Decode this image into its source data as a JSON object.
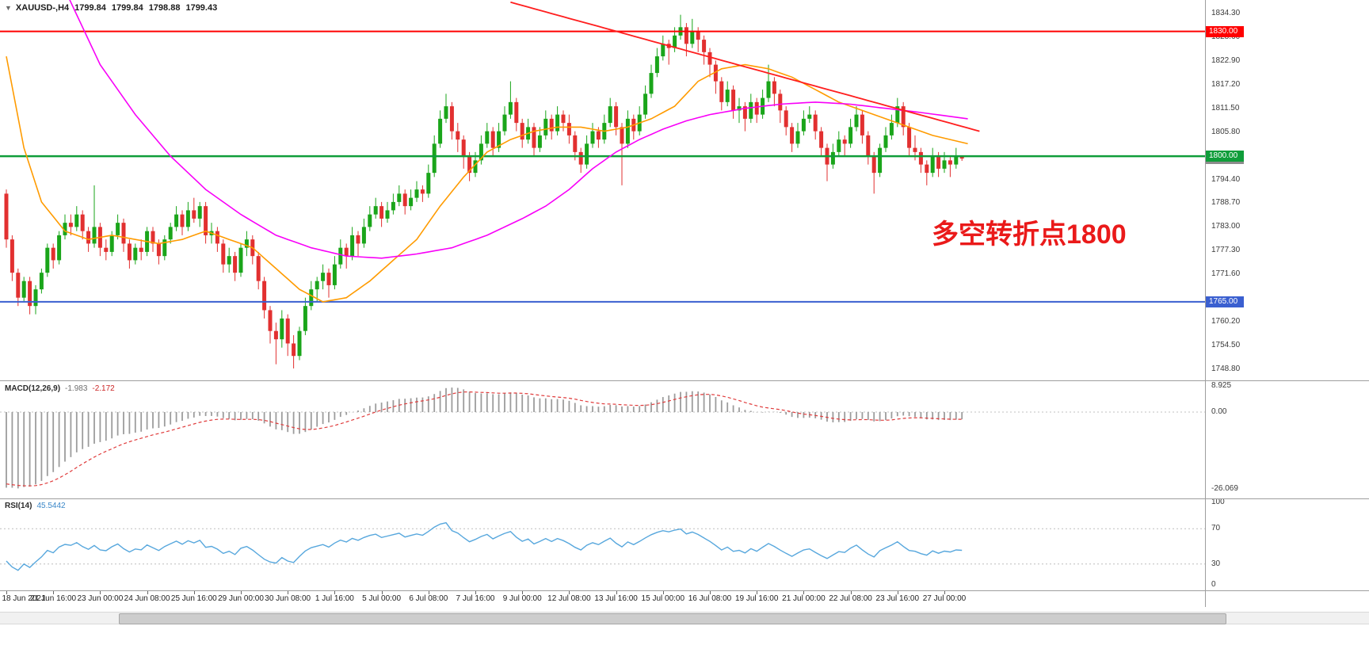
{
  "header": {
    "dropdown_icon": "▼",
    "symbol": "XAUUSD-,H4",
    "ohlc": {
      "open": "1799.84",
      "high": "1799.84",
      "low": "1798.88",
      "close": "1799.43"
    }
  },
  "annotation": {
    "text": "多空转折点1800",
    "color": "#ea1a1a"
  },
  "chart_data": {
    "type": "candlestick",
    "title": "XAUUSD- H4",
    "colors": {
      "up": "#1aa51a",
      "down": "#e23030",
      "background": "#ffffff"
    },
    "price_axis": {
      "ticks": [
        1834.3,
        1828.6,
        1822.9,
        1817.2,
        1811.5,
        1805.8,
        1794.4,
        1788.7,
        1783.0,
        1777.3,
        1771.6,
        1760.2,
        1754.5,
        1748.8
      ]
    },
    "time_axis": {
      "bars_per_label": 8,
      "labels": [
        "18 Jun 2021",
        "21 Jun 16:00",
        "23 Jun 00:00",
        "24 Jun 08:00",
        "25 Jun 16:00",
        "29 Jun 00:00",
        "30 Jun 08:00",
        "1 Jul 16:00",
        "5 Jul 00:00",
        "6 Jul 08:00",
        "7 Jul 16:00",
        "9 Jul 00:00",
        "12 Jul 08:00",
        "13 Jul 16:00",
        "15 Jul 00:00",
        "16 Jul 08:00",
        "19 Jul 16:00",
        "21 Jul 00:00",
        "22 Jul 08:00",
        "23 Jul 16:00",
        "27 Jul 00:00"
      ]
    },
    "hlines": [
      {
        "price": 1830.0,
        "label": "1830.00",
        "color": "#ff0000",
        "width": 2
      },
      {
        "price": 1800.0,
        "label": "1800.00",
        "color": "#0f9d3a",
        "width": 2.5
      },
      {
        "price": 1799.43,
        "label": "1799.43",
        "color": "#8c8c8c",
        "width": 0
      },
      {
        "price": 1765.0,
        "label": "1765.00",
        "color": "#3a5fd0",
        "width": 2
      }
    ],
    "overlays": [
      {
        "name": "ma-fast-orange",
        "color": "#ff9b00",
        "width": 1.6,
        "points": [
          [
            0,
            1824
          ],
          [
            3,
            1802
          ],
          [
            6,
            1789
          ],
          [
            10,
            1782
          ],
          [
            14,
            1780
          ],
          [
            18,
            1781
          ],
          [
            22,
            1780
          ],
          [
            26,
            1779
          ],
          [
            30,
            1780
          ],
          [
            34,
            1782
          ],
          [
            38,
            1780
          ],
          [
            42,
            1778
          ],
          [
            46,
            1773
          ],
          [
            50,
            1768
          ],
          [
            54,
            1765
          ],
          [
            58,
            1766
          ],
          [
            62,
            1770
          ],
          [
            66,
            1775
          ],
          [
            70,
            1780
          ],
          [
            74,
            1788
          ],
          [
            78,
            1795
          ],
          [
            82,
            1801
          ],
          [
            86,
            1804
          ],
          [
            90,
            1806
          ],
          [
            94,
            1807
          ],
          [
            98,
            1807
          ],
          [
            102,
            1806
          ],
          [
            106,
            1807
          ],
          [
            110,
            1809
          ],
          [
            114,
            1812
          ],
          [
            118,
            1818
          ],
          [
            122,
            1821
          ],
          [
            126,
            1822
          ],
          [
            130,
            1821
          ],
          [
            134,
            1819
          ],
          [
            138,
            1816
          ],
          [
            142,
            1813
          ],
          [
            146,
            1811
          ],
          [
            150,
            1809
          ],
          [
            154,
            1807
          ],
          [
            158,
            1805
          ],
          [
            164,
            1803
          ]
        ]
      },
      {
        "name": "ma-slow-magenta",
        "color": "#f800f8",
        "width": 1.6,
        "points": [
          [
            10,
            1840
          ],
          [
            16,
            1822
          ],
          [
            22,
            1810
          ],
          [
            28,
            1800
          ],
          [
            34,
            1792
          ],
          [
            40,
            1786
          ],
          [
            46,
            1781
          ],
          [
            52,
            1778
          ],
          [
            58,
            1776
          ],
          [
            64,
            1775.5
          ],
          [
            70,
            1776.5
          ],
          [
            76,
            1778
          ],
          [
            82,
            1781
          ],
          [
            88,
            1785
          ],
          [
            92,
            1788
          ],
          [
            96,
            1792
          ],
          [
            100,
            1797
          ],
          [
            104,
            1801
          ],
          [
            108,
            1804
          ],
          [
            112,
            1806.5
          ],
          [
            116,
            1808.5
          ],
          [
            120,
            1810
          ],
          [
            126,
            1811.5
          ],
          [
            132,
            1812.5
          ],
          [
            138,
            1813
          ],
          [
            144,
            1812.5
          ],
          [
            150,
            1811.5
          ],
          [
            156,
            1810.5
          ],
          [
            164,
            1809
          ]
        ]
      },
      {
        "name": "trendline-red",
        "color": "#ff1e1e",
        "width": 1.8,
        "points": [
          [
            86,
            1837
          ],
          [
            166,
            1806
          ]
        ]
      }
    ],
    "candles": [
      [
        1791,
        1792,
        1778,
        1780
      ],
      [
        1780,
        1781,
        1770,
        1772
      ],
      [
        1772,
        1773,
        1764,
        1766
      ],
      [
        1766,
        1771,
        1765,
        1770
      ],
      [
        1770,
        1771,
        1762,
        1764
      ],
      [
        1764,
        1769,
        1762,
        1768
      ],
      [
        1768,
        1773,
        1767,
        1772
      ],
      [
        1772,
        1779,
        1771,
        1778
      ],
      [
        1778,
        1779,
        1773,
        1775
      ],
      [
        1775,
        1782,
        1774,
        1781
      ],
      [
        1781,
        1786,
        1780,
        1784
      ],
      [
        1784,
        1786,
        1781,
        1783
      ],
      [
        1783,
        1788,
        1782,
        1786
      ],
      [
        1786,
        1787,
        1780,
        1782
      ],
      [
        1782,
        1783,
        1777,
        1779
      ],
      [
        1779,
        1793,
        1778,
        1783
      ],
      [
        1783,
        1784,
        1776,
        1778
      ],
      [
        1778,
        1780,
        1775,
        1777
      ],
      [
        1777,
        1782,
        1776,
        1781
      ],
      [
        1781,
        1786,
        1780,
        1784
      ],
      [
        1784,
        1785,
        1777,
        1779
      ],
      [
        1779,
        1780,
        1773,
        1775
      ],
      [
        1775,
        1779,
        1774,
        1778
      ],
      [
        1778,
        1780,
        1775,
        1777
      ],
      [
        1777,
        1783,
        1776,
        1782
      ],
      [
        1782,
        1783,
        1777,
        1779
      ],
      [
        1779,
        1780,
        1774,
        1776
      ],
      [
        1776,
        1781,
        1775,
        1780
      ],
      [
        1780,
        1784,
        1779,
        1783
      ],
      [
        1783,
        1788,
        1782,
        1786
      ],
      [
        1786,
        1787,
        1781,
        1783
      ],
      [
        1783,
        1789,
        1782,
        1787
      ],
      [
        1787,
        1790,
        1784,
        1785
      ],
      [
        1785,
        1789,
        1783,
        1788
      ],
      [
        1788,
        1789,
        1779,
        1781
      ],
      [
        1781,
        1784,
        1779,
        1782
      ],
      [
        1782,
        1783,
        1777,
        1779
      ],
      [
        1779,
        1780,
        1772,
        1774
      ],
      [
        1774,
        1778,
        1772,
        1776
      ],
      [
        1776,
        1777,
        1770,
        1772
      ],
      [
        1772,
        1779,
        1771,
        1778
      ],
      [
        1778,
        1782,
        1776,
        1780
      ],
      [
        1780,
        1781,
        1774,
        1776
      ],
      [
        1776,
        1777,
        1768,
        1770
      ],
      [
        1770,
        1771,
        1761,
        1763
      ],
      [
        1763,
        1764,
        1755,
        1758
      ],
      [
        1758,
        1760,
        1750,
        1756
      ],
      [
        1756,
        1763,
        1754,
        1761
      ],
      [
        1761,
        1762,
        1752,
        1755
      ],
      [
        1755,
        1757,
        1749,
        1752
      ],
      [
        1752,
        1759,
        1751,
        1758
      ],
      [
        1758,
        1766,
        1757,
        1764
      ],
      [
        1764,
        1770,
        1763,
        1768
      ],
      [
        1768,
        1771,
        1765,
        1770
      ],
      [
        1770,
        1774,
        1768,
        1772
      ],
      [
        1772,
        1773,
        1766,
        1769
      ],
      [
        1769,
        1776,
        1768,
        1774
      ],
      [
        1774,
        1780,
        1773,
        1778
      ],
      [
        1778,
        1779,
        1773,
        1776
      ],
      [
        1776,
        1783,
        1775,
        1781
      ],
      [
        1781,
        1782,
        1776,
        1779
      ],
      [
        1779,
        1785,
        1778,
        1783
      ],
      [
        1783,
        1788,
        1782,
        1786
      ],
      [
        1786,
        1790,
        1785,
        1788
      ],
      [
        1788,
        1789,
        1783,
        1785
      ],
      [
        1785,
        1789,
        1784,
        1787
      ],
      [
        1787,
        1791,
        1786,
        1789
      ],
      [
        1789,
        1793,
        1788,
        1791
      ],
      [
        1791,
        1792,
        1786,
        1788
      ],
      [
        1788,
        1792,
        1787,
        1790
      ],
      [
        1790,
        1794,
        1789,
        1792
      ],
      [
        1792,
        1793,
        1789,
        1791
      ],
      [
        1791,
        1798,
        1790,
        1796
      ],
      [
        1796,
        1805,
        1795,
        1803
      ],
      [
        1803,
        1811,
        1802,
        1809
      ],
      [
        1809,
        1815,
        1808,
        1812
      ],
      [
        1812,
        1813,
        1804,
        1806
      ],
      [
        1806,
        1808,
        1801,
        1804
      ],
      [
        1804,
        1805,
        1797,
        1800
      ],
      [
        1800,
        1801,
        1794,
        1796
      ],
      [
        1796,
        1801,
        1795,
        1799
      ],
      [
        1799,
        1805,
        1798,
        1803
      ],
      [
        1803,
        1808,
        1802,
        1806
      ],
      [
        1806,
        1807,
        1800,
        1802
      ],
      [
        1802,
        1808,
        1801,
        1806
      ],
      [
        1806,
        1812,
        1805,
        1810
      ],
      [
        1810,
        1818,
        1809,
        1813
      ],
      [
        1813,
        1814,
        1806,
        1808
      ],
      [
        1808,
        1809,
        1802,
        1804
      ],
      [
        1804,
        1809,
        1803,
        1807
      ],
      [
        1807,
        1808,
        1800,
        1802
      ],
      [
        1802,
        1807,
        1801,
        1805
      ],
      [
        1805,
        1811,
        1804,
        1809
      ],
      [
        1809,
        1810,
        1804,
        1806
      ],
      [
        1806,
        1812,
        1805,
        1810
      ],
      [
        1810,
        1811,
        1806,
        1808
      ],
      [
        1808,
        1810,
        1803,
        1805
      ],
      [
        1805,
        1806,
        1799,
        1801
      ],
      [
        1801,
        1802,
        1796,
        1798
      ],
      [
        1798,
        1805,
        1797,
        1803
      ],
      [
        1803,
        1808,
        1802,
        1806
      ],
      [
        1806,
        1807,
        1802,
        1804
      ],
      [
        1804,
        1810,
        1803,
        1808
      ],
      [
        1808,
        1814,
        1807,
        1812
      ],
      [
        1812,
        1813,
        1805,
        1807
      ],
      [
        1807,
        1808,
        1793,
        1803
      ],
      [
        1803,
        1811,
        1802,
        1809
      ],
      [
        1809,
        1810,
        1804,
        1806
      ],
      [
        1806,
        1812,
        1805,
        1810
      ],
      [
        1810,
        1817,
        1809,
        1815
      ],
      [
        1815,
        1822,
        1814,
        1820
      ],
      [
        1820,
        1826,
        1819,
        1824
      ],
      [
        1824,
        1829,
        1823,
        1827
      ],
      [
        1827,
        1828,
        1822,
        1826
      ],
      [
        1826,
        1831,
        1825,
        1829
      ],
      [
        1829,
        1834,
        1828,
        1831
      ],
      [
        1831,
        1832,
        1824,
        1827
      ],
      [
        1827,
        1833,
        1826,
        1830
      ],
      [
        1830,
        1831,
        1825,
        1828
      ],
      [
        1828,
        1829,
        1822,
        1825
      ],
      [
        1825,
        1826,
        1819,
        1822
      ],
      [
        1822,
        1823,
        1815,
        1818
      ],
      [
        1818,
        1819,
        1811,
        1813
      ],
      [
        1813,
        1818,
        1812,
        1816
      ],
      [
        1816,
        1817,
        1809,
        1811
      ],
      [
        1811,
        1814,
        1808,
        1812
      ],
      [
        1812,
        1813,
        1806,
        1809
      ],
      [
        1809,
        1815,
        1808,
        1813
      ],
      [
        1813,
        1814,
        1808,
        1810
      ],
      [
        1810,
        1816,
        1809,
        1814
      ],
      [
        1814,
        1822,
        1813,
        1818
      ],
      [
        1818,
        1819,
        1812,
        1815
      ],
      [
        1815,
        1816,
        1808,
        1811
      ],
      [
        1811,
        1812,
        1805,
        1807
      ],
      [
        1807,
        1808,
        1801,
        1803
      ],
      [
        1803,
        1808,
        1802,
        1806
      ],
      [
        1806,
        1811,
        1805,
        1809
      ],
      [
        1809,
        1812,
        1808,
        1810
      ],
      [
        1810,
        1811,
        1804,
        1806
      ],
      [
        1806,
        1807,
        1800,
        1802
      ],
      [
        1802,
        1803,
        1794,
        1798
      ],
      [
        1798,
        1803,
        1797,
        1801
      ],
      [
        1801,
        1806,
        1800,
        1804
      ],
      [
        1804,
        1805,
        1800,
        1803
      ],
      [
        1803,
        1809,
        1802,
        1807
      ],
      [
        1807,
        1812,
        1806,
        1810
      ],
      [
        1810,
        1811,
        1803,
        1805
      ],
      [
        1805,
        1806,
        1798,
        1800
      ],
      [
        1800,
        1801,
        1791,
        1796
      ],
      [
        1796,
        1803,
        1795,
        1802
      ],
      [
        1802,
        1807,
        1801,
        1805
      ],
      [
        1805,
        1810,
        1804,
        1808
      ],
      [
        1808,
        1814,
        1807,
        1812
      ],
      [
        1812,
        1813,
        1805,
        1807
      ],
      [
        1807,
        1808,
        1800,
        1802
      ],
      [
        1802,
        1805,
        1799,
        1801
      ],
      [
        1801,
        1802,
        1796,
        1798
      ],
      [
        1798,
        1799,
        1793,
        1796
      ],
      [
        1796,
        1802,
        1795,
        1800
      ],
      [
        1800,
        1801,
        1795,
        1797
      ],
      [
        1797,
        1801,
        1796,
        1799
      ],
      [
        1799,
        1800,
        1795,
        1798
      ],
      [
        1798,
        1802,
        1797,
        1799.84
      ],
      [
        1799.84,
        1799.84,
        1798.88,
        1799.43
      ]
    ],
    "indicators": {
      "macd": {
        "label": "MACD(12,26,9)",
        "value_main": "-1.983",
        "value_signal": "-2.172",
        "params": {
          "fast": 12,
          "slow": 26,
          "signal": 9
        },
        "seeds": {
          "ema_fast": 1799,
          "ema_slow": 1825,
          "signal": -24
        },
        "axis_labels": [
          {
            "v": 8.925,
            "t": "8.925"
          },
          {
            "v": 0,
            "t": "0.00"
          },
          {
            "v": -26.069,
            "t": "-26.069"
          }
        ],
        "hist_color": "#9c9c9c",
        "signal_color": "#e03c3c"
      },
      "rsi": {
        "label": "RSI(14)",
        "value": "45.5442",
        "period": 14,
        "seeds": {
          "avg_gain": 0.8,
          "avg_loss": 1.6
        },
        "levels": [
          70,
          30
        ],
        "axis_labels": [
          {
            "v": 100,
            "t": "100"
          },
          {
            "v": 70,
            "t": "70"
          },
          {
            "v": 30,
            "t": "30"
          },
          {
            "v": 0,
            "t": "0"
          }
        ],
        "color": "#57a7dd"
      }
    }
  }
}
